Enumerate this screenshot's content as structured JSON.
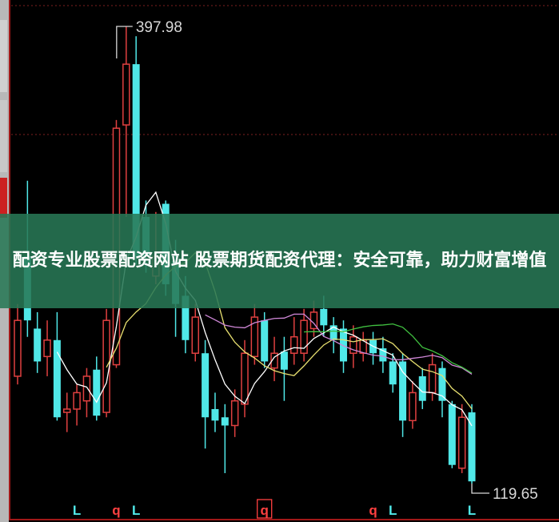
{
  "chart_data": {
    "type": "candlestick",
    "title": "",
    "ylim": [
      119.65,
      397.98
    ],
    "grid": true,
    "annotations": {
      "high_label": "397.98",
      "low_label": "119.65"
    },
    "up_color": "#e04040",
    "down_color": "#50e8e8",
    "ma_colors": [
      "#ffffff",
      "#e8e070",
      "#d088d8",
      "#40c040"
    ],
    "ma_periods": [
      5,
      10,
      20,
      30
    ],
    "candles_ohlc": [
      [
        185,
        229,
        180,
        219
      ],
      [
        258,
        304,
        209,
        219
      ],
      [
        214,
        224,
        187,
        194
      ],
      [
        197,
        219,
        185,
        207
      ],
      [
        207,
        224,
        158,
        160
      ],
      [
        163,
        175,
        151,
        165
      ],
      [
        165,
        180,
        155,
        175
      ],
      [
        170,
        190,
        160,
        185
      ],
      [
        189,
        197,
        158,
        161
      ],
      [
        163,
        226,
        160,
        219
      ],
      [
        192,
        341,
        190,
        336
      ],
      [
        338,
        397.98,
        282,
        375
      ],
      [
        375,
        392,
        253,
        258
      ],
      [
        282,
        292,
        248,
        258
      ],
      [
        246,
        285,
        241,
        258
      ],
      [
        290,
        292,
        234,
        241
      ],
      [
        255,
        268,
        209,
        229
      ],
      [
        234,
        246,
        199,
        207
      ],
      [
        199,
        229,
        194,
        221
      ],
      [
        199,
        207,
        141,
        160
      ],
      [
        165,
        175,
        151,
        158
      ],
      [
        160,
        168,
        126,
        155
      ],
      [
        155,
        177,
        148,
        170
      ],
      [
        168,
        207,
        160,
        199
      ],
      [
        197,
        229,
        192,
        221
      ],
      [
        219,
        224,
        190,
        194
      ],
      [
        190,
        209,
        182,
        199
      ],
      [
        200,
        209,
        170,
        189
      ],
      [
        199,
        221,
        192,
        209
      ],
      [
        199,
        226,
        194,
        219
      ],
      [
        214,
        231,
        209,
        224
      ],
      [
        226,
        234,
        209,
        216
      ],
      [
        216,
        221,
        199,
        207
      ],
      [
        214,
        219,
        187,
        194
      ],
      [
        199,
        216,
        190,
        209
      ],
      [
        199,
        212,
        194,
        207
      ],
      [
        207,
        212,
        192,
        199
      ],
      [
        202,
        209,
        187,
        194
      ],
      [
        194,
        199,
        175,
        180
      ],
      [
        194,
        199,
        148,
        158
      ],
      [
        158,
        182,
        153,
        175
      ],
      [
        185,
        190,
        165,
        170
      ],
      [
        175,
        199,
        170,
        192
      ],
      [
        190,
        194,
        160,
        170
      ],
      [
        168,
        170,
        129,
        131
      ],
      [
        129,
        168,
        126,
        160
      ],
      [
        163,
        168,
        119.65,
        121
      ]
    ],
    "bottom_markers": [
      {
        "index": 6,
        "text": "L",
        "color": "#50e8e8",
        "boxed": false
      },
      {
        "index": 10,
        "text": "q",
        "color": "#ff4040",
        "boxed": false
      },
      {
        "index": 12,
        "text": "L",
        "color": "#50e8e8",
        "boxed": false
      },
      {
        "index": 25,
        "text": "q",
        "color": "#ff4040",
        "boxed": true
      },
      {
        "index": 36,
        "text": "q",
        "color": "#ff4040",
        "boxed": false
      },
      {
        "index": 38,
        "text": "L",
        "color": "#50e8e8",
        "boxed": false
      },
      {
        "index": 46,
        "text": "L",
        "color": "#50e8e8",
        "boxed": false
      }
    ]
  },
  "banner": {
    "text": "配资专业股票配资网站 股票期货配资代理：安全可靠，助力财富增值",
    "color": "#287855"
  }
}
